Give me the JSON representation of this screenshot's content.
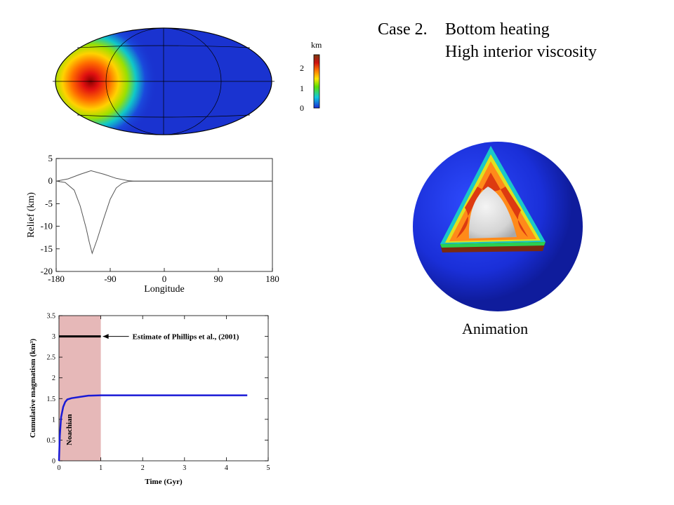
{
  "title": {
    "case": "Case 2.",
    "line1": "Bottom heating",
    "line2": "High interior viscosity"
  },
  "animation_label": "Animation",
  "map": {
    "colorbar": {
      "unit": "km",
      "ticks": [
        "0",
        "1",
        "2"
      ]
    }
  },
  "chart_data": [
    {
      "type": "line",
      "title": "",
      "xlabel": "Longitude",
      "ylabel": "Relief (km)",
      "xlim": [
        -180,
        180
      ],
      "ylim": [
        -20,
        5
      ],
      "x_ticks": [
        "-180",
        "-90",
        "0",
        "90",
        "180"
      ],
      "y_ticks": [
        "5",
        "0",
        "-5",
        "-10",
        "-15",
        "-20"
      ],
      "series": [
        {
          "x": [
            -180,
            -165,
            -150,
            -140,
            -130,
            -125,
            -120,
            -112,
            -100,
            -90,
            -80,
            -70,
            -60,
            -50,
            -40,
            0,
            90,
            180
          ],
          "values": [
            0,
            -0.3,
            -2,
            -5.5,
            -10.5,
            -13.5,
            -16,
            -13,
            -8,
            -4,
            -1.5,
            -0.5,
            -0.1,
            0,
            0,
            0,
            0,
            0
          ]
        },
        {
          "x": [
            -180,
            -160,
            -140,
            -122,
            -100,
            -80,
            -60,
            -50,
            0,
            180
          ],
          "values": [
            0,
            0.5,
            1.5,
            2.3,
            1.5,
            0.6,
            0.1,
            0,
            0,
            0
          ]
        }
      ]
    },
    {
      "type": "line",
      "title": "",
      "xlabel": "Time (Gyr)",
      "ylabel": "Cumulative magmatism (km³)",
      "xlim": [
        0,
        5
      ],
      "ylim": [
        0,
        3.5
      ],
      "x_ticks": [
        "0",
        "1",
        "2",
        "3",
        "4",
        "5"
      ],
      "y_ticks": [
        "0",
        "0.5",
        "1",
        "1.5",
        "2",
        "2.5",
        "3",
        "3.5"
      ],
      "shaded_region": {
        "label": "Noachian",
        "x": [
          0,
          1
        ]
      },
      "reference_line": {
        "y": 3,
        "x": [
          0,
          1
        ],
        "label": "Estimate of Phillips et al., (2001)"
      },
      "series": [
        {
          "color": "#1a1ad6",
          "x": [
            0,
            0.02,
            0.05,
            0.1,
            0.15,
            0.2,
            0.3,
            0.5,
            0.7,
            1.0,
            1.5,
            2,
            3,
            4,
            4.5
          ],
          "values": [
            0,
            0.6,
            1.05,
            1.3,
            1.42,
            1.48,
            1.51,
            1.54,
            1.57,
            1.58,
            1.58,
            1.58,
            1.58,
            1.58,
            1.58
          ]
        }
      ]
    }
  ]
}
